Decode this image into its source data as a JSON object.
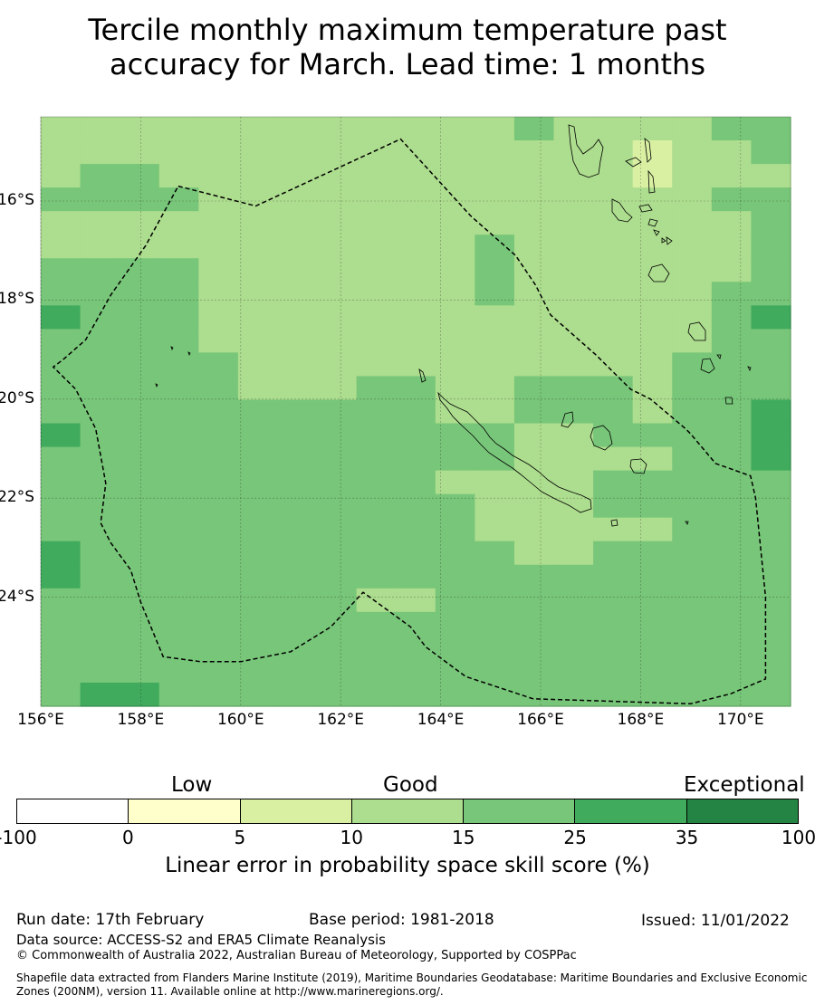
{
  "title": {
    "line1": "Tercile monthly maximum temperature past",
    "line2": "accuracy for March. Lead time: 1 months"
  },
  "map": {
    "lon_range": [
      156,
      171
    ],
    "lat_range": [
      -14.3,
      -26.2
    ],
    "lon_ticks": [
      "156°E",
      "158°E",
      "160°E",
      "162°E",
      "164°E",
      "166°E",
      "168°E",
      "170°E"
    ],
    "lat_ticks": [
      {
        "lat": -16,
        "label": "16°S"
      },
      {
        "lat": -18,
        "label": "18°S"
      },
      {
        "lat": -20,
        "label": "20°S"
      },
      {
        "lat": -22,
        "label": "22°S"
      },
      {
        "lat": -24,
        "label": "24°S"
      }
    ],
    "grid_rows": [
      "3333333333334333344",
      "3333333333333332334",
      "3443333333333332333",
      "4444333333333333344",
      "3333333333333333334",
      "3333333333343333334",
      "4444333333343333334",
      "4444333333343333344",
      "5444333333333333345",
      "4444333333333333344",
      "4444433333333333444",
      "4444433344334443444",
      "4444444444334443445",
      "5444444444443344445",
      "4444444444443333445",
      "4444444444333344444",
      "4444444444433344444",
      "4444444444433333444",
      "5444444444443344444",
      "5444444444444444444",
      "4444444433444444444",
      "4444444444444444444",
      "4444444444444444444",
      "4444444444444444444",
      "4554444444444444444"
    ],
    "eez_boundary": [
      [
        158.75,
        -15.7
      ],
      [
        160.3,
        -16.1
      ],
      [
        163.2,
        -14.75
      ],
      [
        164.6,
        -16.3
      ],
      [
        165.5,
        -17.1
      ],
      [
        165.9,
        -17.7
      ],
      [
        166.2,
        -18.3
      ],
      [
        167.1,
        -19.1
      ],
      [
        167.8,
        -19.8
      ],
      [
        168.2,
        -20.0
      ],
      [
        168.9,
        -20.6
      ],
      [
        169.0,
        -20.7
      ],
      [
        169.5,
        -21.3
      ],
      [
        170.2,
        -21.55
      ],
      [
        170.3,
        -22.0
      ],
      [
        170.5,
        -24.0
      ],
      [
        170.5,
        -25.65
      ],
      [
        169.8,
        -25.95
      ],
      [
        169.0,
        -26.15
      ],
      [
        165.85,
        -26.05
      ],
      [
        164.5,
        -25.6
      ],
      [
        163.7,
        -25.0
      ],
      [
        163.4,
        -24.6
      ],
      [
        162.45,
        -23.9
      ],
      [
        161.8,
        -24.6
      ],
      [
        161.0,
        -25.1
      ],
      [
        160.0,
        -25.3
      ],
      [
        159.2,
        -25.3
      ],
      [
        158.45,
        -25.2
      ],
      [
        158.0,
        -24.1
      ],
      [
        157.8,
        -23.45
      ],
      [
        157.4,
        -22.9
      ],
      [
        157.2,
        -22.5
      ],
      [
        157.3,
        -21.7
      ],
      [
        157.1,
        -20.6
      ],
      [
        156.7,
        -19.8
      ],
      [
        156.25,
        -19.35
      ],
      [
        156.45,
        -19.2
      ],
      [
        156.9,
        -18.8
      ],
      [
        157.4,
        -17.9
      ],
      [
        158.1,
        -16.9
      ],
      [
        158.75,
        -15.7
      ]
    ]
  },
  "colorbar": {
    "categories": [
      "Low",
      "Good",
      "Exceptional"
    ],
    "colors": [
      "#ffffff",
      "#ffffcc",
      "#d9f0a3",
      "#addd8e",
      "#78c679",
      "#41ab5d",
      "#238443"
    ],
    "ticks": [
      "-100",
      "0",
      "5",
      "10",
      "15",
      "25",
      "35",
      "100"
    ],
    "label": "Linear error in probability space skill score (%)"
  },
  "footer": {
    "run_date": "Run date: 17th February",
    "base_period": "Base period: 1981-2018",
    "issued": "Issued: 11/01/2022",
    "data_source": "Data source: ACCESS-S2 and ERA5 Climate Reanalysis",
    "copyright": "© Commonwealth of Australia 2022, Australian Bureau of Meteorology, Supported by COSPPac",
    "shapefile_line1": "Shapefile data extracted from Flanders Marine Institute (2019), Maritime Boundaries Geodatabase: Maritime Boundaries and Exclusive Economic",
    "shapefile_line2": "Zones (200NM), version 11. Available online at http://www.marineregions.org/."
  }
}
